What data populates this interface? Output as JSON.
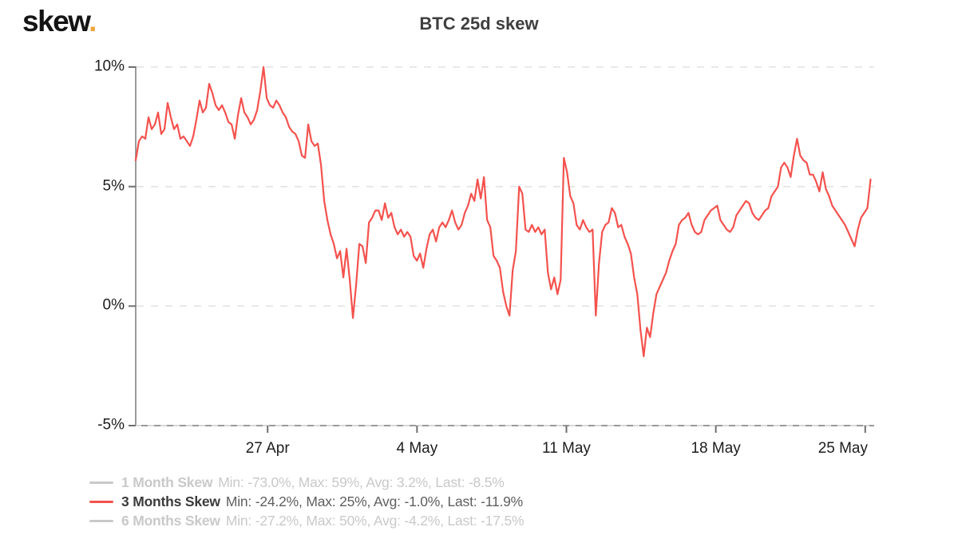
{
  "brand": {
    "name": "skew",
    "dot": "."
  },
  "chart_data": {
    "type": "line",
    "title": "BTC 25d skew",
    "xlabel": "",
    "ylabel": "",
    "ylim": [
      -5,
      10
    ],
    "x_range_days": [
      0,
      34.6
    ],
    "grid": "horizontal-dashed",
    "legend_position": "bottom-left",
    "yticks": [
      {
        "v": 10,
        "label": "10%"
      },
      {
        "v": 5,
        "label": "5%"
      },
      {
        "v": 0,
        "label": "0%"
      },
      {
        "v": -5,
        "label": "-5%"
      }
    ],
    "xticks": [
      {
        "t": 6.18,
        "label": "27 Apr",
        "align": "center"
      },
      {
        "t": 13.18,
        "label": "4 May",
        "align": "center"
      },
      {
        "t": 20.18,
        "label": "11 May",
        "align": "center"
      },
      {
        "t": 27.18,
        "label": "18 May",
        "align": "center"
      },
      {
        "t": 34.18,
        "label": "25 May",
        "align": "right"
      }
    ],
    "series": [
      {
        "name": "3 Months Skew",
        "unit": "percent",
        "color": "#f4524e",
        "t_start_days": 0,
        "t_step_days": 0.1497,
        "values": [
          6.1,
          6.9,
          7.1,
          7.0,
          7.9,
          7.4,
          7.6,
          8.1,
          7.2,
          7.4,
          8.5,
          7.9,
          7.4,
          7.6,
          7.0,
          7.1,
          6.9,
          6.7,
          7.1,
          7.8,
          8.6,
          8.1,
          8.3,
          9.3,
          8.9,
          8.4,
          8.2,
          8.4,
          8.1,
          7.7,
          7.6,
          7.0,
          8.0,
          8.7,
          8.1,
          7.9,
          7.6,
          7.8,
          8.2,
          9.0,
          10.0,
          8.7,
          8.4,
          8.3,
          8.6,
          8.4,
          8.1,
          7.9,
          7.5,
          7.3,
          7.2,
          6.9,
          6.3,
          6.2,
          7.6,
          6.9,
          6.7,
          6.8,
          5.9,
          4.4,
          3.6,
          3.0,
          2.6,
          2.0,
          2.3,
          1.2,
          2.4,
          1.1,
          -0.5,
          0.9,
          2.6,
          2.5,
          1.8,
          3.5,
          3.7,
          4.0,
          4.0,
          3.6,
          4.3,
          3.7,
          3.9,
          3.3,
          3.0,
          3.2,
          2.9,
          3.1,
          2.9,
          2.1,
          1.9,
          2.2,
          1.6,
          2.4,
          3.0,
          3.2,
          2.7,
          3.3,
          3.5,
          3.3,
          3.6,
          4.0,
          3.5,
          3.2,
          3.4,
          3.9,
          4.2,
          4.7,
          4.4,
          5.3,
          4.5,
          5.4,
          3.6,
          3.3,
          2.1,
          1.9,
          1.6,
          0.6,
          0.0,
          -0.4,
          1.5,
          2.3,
          5.0,
          4.7,
          3.2,
          3.1,
          3.4,
          3.1,
          3.3,
          3.0,
          3.2,
          1.4,
          0.7,
          1.2,
          0.5,
          1.1,
          6.2,
          5.6,
          4.6,
          4.3,
          3.4,
          3.2,
          3.6,
          3.3,
          3.1,
          3.2,
          -0.4,
          1.8,
          3.1,
          3.4,
          3.5,
          4.1,
          3.9,
          3.3,
          3.4,
          2.9,
          2.6,
          2.2,
          1.2,
          0.5,
          -1.0,
          -2.1,
          -0.9,
          -1.3,
          -0.3,
          0.5,
          0.8,
          1.1,
          1.4,
          1.9,
          2.3,
          2.6,
          3.4,
          3.6,
          3.7,
          3.9,
          3.4,
          3.1,
          3.0,
          3.1,
          3.6,
          3.8,
          4.0,
          4.1,
          4.2,
          3.6,
          3.4,
          3.2,
          3.1,
          3.3,
          3.8,
          4.0,
          4.2,
          4.4,
          4.3,
          3.9,
          3.7,
          3.6,
          3.8,
          4.0,
          4.1,
          4.6,
          4.8,
          5.0,
          5.8,
          6.0,
          5.8,
          5.4,
          6.3,
          7.0,
          6.3,
          6.1,
          6.0,
          5.5,
          5.5,
          5.2,
          4.8,
          5.6,
          4.9,
          4.6,
          4.2,
          4.0,
          3.8,
          3.6,
          3.4,
          3.1,
          2.8,
          2.5,
          3.2,
          3.7,
          3.9,
          4.1,
          5.3
        ]
      }
    ],
    "legend": [
      {
        "name": "1 Month Skew",
        "stats": "Min: -73.0%, Max: 59%, Avg: 3.2%, Last: -8.5%",
        "enabled": false
      },
      {
        "name": "3 Months Skew",
        "stats": "Min: -24.2%, Max: 25%, Avg: -1.0%, Last: -11.9%",
        "enabled": true
      },
      {
        "name": "6 Months Skew",
        "stats": "Min: -27.2%, Max: 50%, Avg: -4.2%, Last: -17.5%",
        "enabled": false
      }
    ],
    "colors": {
      "line": "#f4524e",
      "grid": "#e2e2e2",
      "axis": "#9a9a9a",
      "axis_dash_overlay": "#d8d8d8",
      "tick": "#6e6e6e",
      "tick_label": "#1d1d1d",
      "title": "#3f3f3f",
      "legend_muted": "#c9c9c9",
      "legend_name": "#3b3b3b",
      "legend_stats": "#5f5f5f",
      "accent_dot": "#f0a43c",
      "logo": "#141414",
      "background": "#ffffff"
    }
  }
}
